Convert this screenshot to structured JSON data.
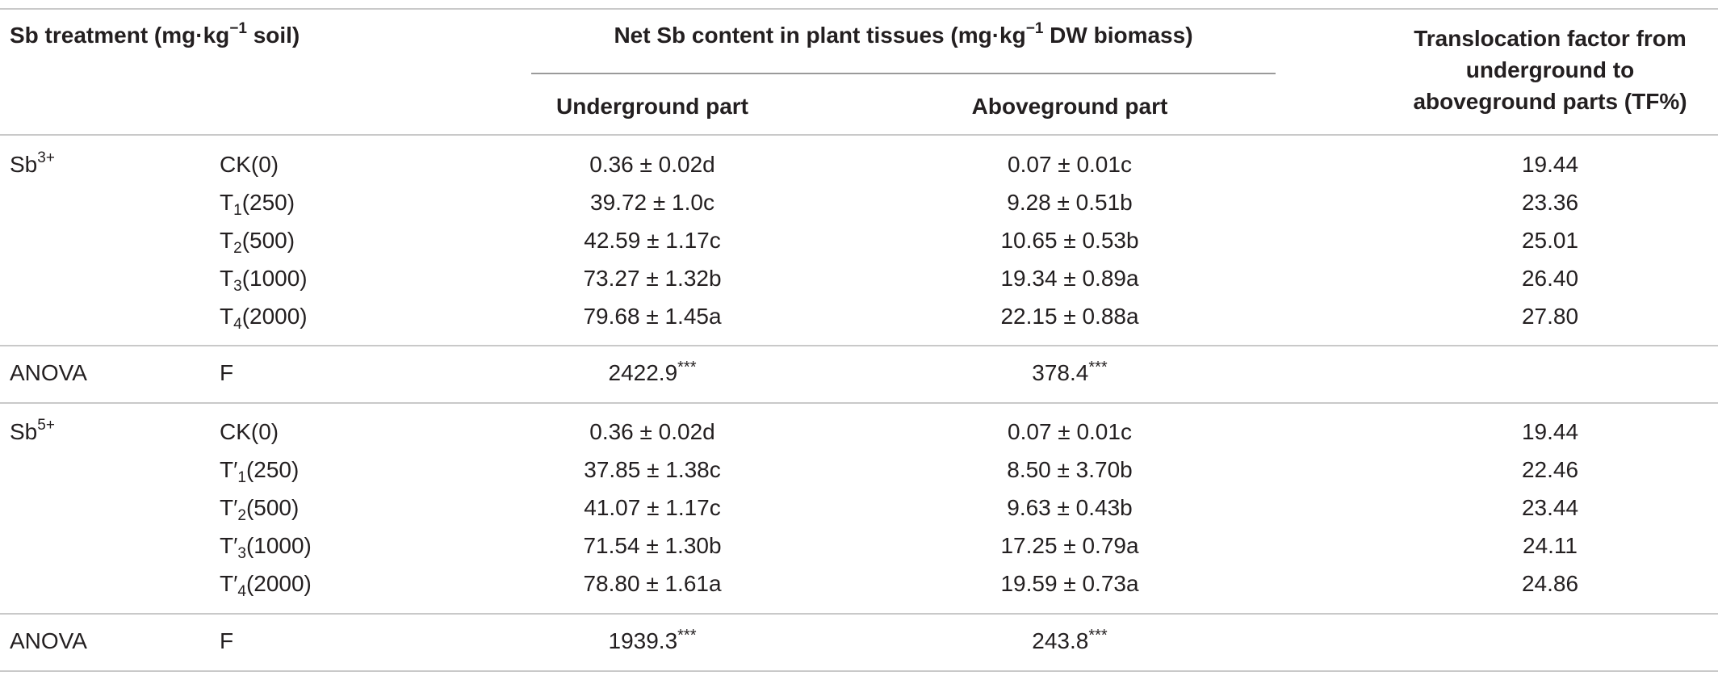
{
  "header": {
    "treatment": {
      "prefix": "Sb treatment (mg·kg",
      "sup": "−1",
      "suffix": " soil)"
    },
    "net_sb": {
      "prefix": "Net Sb content in plant tissues (mg·kg",
      "sup": "−1",
      "suffix": " DW biomass)"
    },
    "underground": "Underground part",
    "aboveground": "Aboveground part",
    "tf_lines": [
      "Translocation factor from",
      "underground to",
      "aboveground parts (TF%)"
    ]
  },
  "groups": [
    {
      "species": {
        "base": "Sb",
        "sup": "3+"
      },
      "rows": [
        {
          "prefix": "CK",
          "sub": "",
          "dose": "(0)",
          "under": "0.36 ± 0.02d",
          "above": "0.07 ± 0.01c",
          "tf": "19.44"
        },
        {
          "prefix": "T",
          "sub": "1",
          "dose": "(250)",
          "under": "39.72 ± 1.0c",
          "above": "9.28 ± 0.51b",
          "tf": "23.36"
        },
        {
          "prefix": "T",
          "sub": "2",
          "dose": "(500)",
          "under": "42.59 ± 1.17c",
          "above": "10.65 ± 0.53b",
          "tf": "25.01"
        },
        {
          "prefix": "T",
          "sub": "3",
          "dose": "(1000)",
          "under": "73.27 ± 1.32b",
          "above": "19.34 ± 0.89a",
          "tf": "26.40"
        },
        {
          "prefix": "T",
          "sub": "4",
          "dose": "(2000)",
          "under": "79.68 ± 1.45a",
          "above": "22.15 ± 0.88a",
          "tf": "27.80"
        }
      ],
      "anova": {
        "label": "ANOVA",
        "stat": "F",
        "under": "2422.9",
        "above": "378.4",
        "sig": "***"
      }
    },
    {
      "species": {
        "base": "Sb",
        "sup": "5+"
      },
      "rows": [
        {
          "prefix": "CK",
          "sub": "",
          "dose": "(0)",
          "under": "0.36 ± 0.02d",
          "above": "0.07 ± 0.01c",
          "tf": "19.44"
        },
        {
          "prefix": "T′",
          "sub": "1",
          "dose": "(250)",
          "under": "37.85 ± 1.38c",
          "above": "8.50 ± 3.70b",
          "tf": "22.46"
        },
        {
          "prefix": "T′",
          "sub": "2",
          "dose": "(500)",
          "under": "41.07 ± 1.17c",
          "above": "9.63 ± 0.43b",
          "tf": "23.44"
        },
        {
          "prefix": "T′",
          "sub": "3",
          "dose": "(1000)",
          "under": "71.54 ± 1.30b",
          "above": "17.25 ± 0.79a",
          "tf": "24.11"
        },
        {
          "prefix": "T′",
          "sub": "4",
          "dose": "(2000)",
          "under": "78.80 ± 1.61a",
          "above": "19.59 ± 0.73a",
          "tf": "24.86"
        }
      ],
      "anova": {
        "label": "ANOVA",
        "stat": "F",
        "under": "1939.3",
        "above": "243.8",
        "sig": "***"
      }
    }
  ]
}
